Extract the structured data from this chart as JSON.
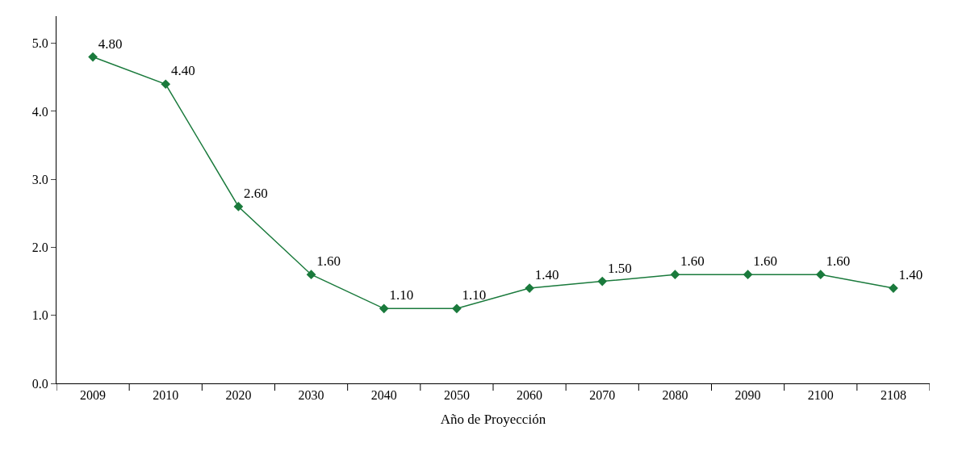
{
  "chart_data": {
    "type": "line",
    "xlabel": "Año de Proyección",
    "categories": [
      "2009",
      "2010",
      "2020",
      "2030",
      "2040",
      "2050",
      "2060",
      "2070",
      "2080",
      "2090",
      "2100",
      "2108"
    ],
    "series": [
      {
        "color": "#1a7a3c",
        "values": [
          4.8,
          4.4,
          2.6,
          1.6,
          1.1,
          1.1,
          1.4,
          1.5,
          1.6,
          1.6,
          1.6,
          1.4
        ],
        "value_labels": [
          "4.80",
          "4.40",
          "2.60",
          "1.60",
          "1.10",
          "1.10",
          "1.40",
          "1.50",
          "1.60",
          "1.60",
          "1.60",
          "1.40"
        ]
      }
    ],
    "ylim": [
      0,
      5.4
    ],
    "yticks": [
      {
        "value": 0,
        "label": "0.0"
      },
      {
        "value": 1,
        "label": "1.0"
      },
      {
        "value": 2,
        "label": "2.0"
      },
      {
        "value": 3,
        "label": "3.0"
      },
      {
        "value": 4,
        "label": "4.0"
      },
      {
        "value": 5,
        "label": "5.0"
      }
    ],
    "marker": "diamond",
    "line_style": "solid"
  }
}
